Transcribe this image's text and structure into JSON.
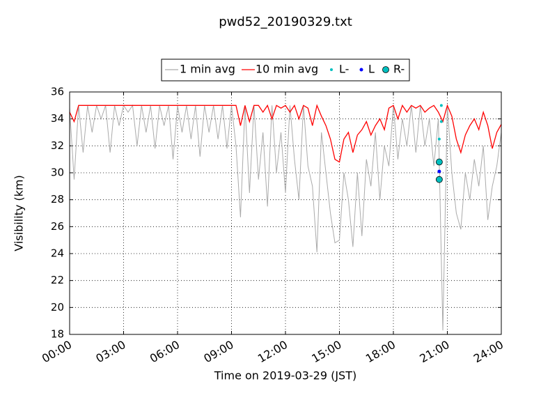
{
  "chart_data": {
    "type": "line",
    "title": "pwd52_20190329.txt",
    "x_label": "Time on 2019-03-29 (JST)",
    "y_label": "Visibility (km)",
    "x": [
      "00:00",
      "00:15",
      "00:30",
      "00:45",
      "01:00",
      "01:15",
      "01:30",
      "01:45",
      "02:00",
      "02:15",
      "02:30",
      "02:45",
      "03:00",
      "03:15",
      "03:30",
      "03:45",
      "04:00",
      "04:15",
      "04:30",
      "04:45",
      "05:00",
      "05:15",
      "05:30",
      "05:45",
      "06:00",
      "06:15",
      "06:30",
      "06:45",
      "07:00",
      "07:15",
      "07:30",
      "07:45",
      "08:00",
      "08:15",
      "08:30",
      "08:45",
      "09:00",
      "09:15",
      "09:30",
      "09:45",
      "10:00",
      "10:15",
      "10:30",
      "10:45",
      "11:00",
      "11:15",
      "11:30",
      "11:45",
      "12:00",
      "12:15",
      "12:30",
      "12:45",
      "13:00",
      "13:15",
      "13:30",
      "13:45",
      "14:00",
      "14:15",
      "14:30",
      "14:45",
      "15:00",
      "15:15",
      "15:30",
      "15:45",
      "16:00",
      "16:15",
      "16:30",
      "16:45",
      "17:00",
      "17:15",
      "17:30",
      "17:45",
      "18:00",
      "18:15",
      "18:30",
      "18:45",
      "19:00",
      "19:15",
      "19:30",
      "19:45",
      "20:00",
      "20:15",
      "20:30",
      "20:45",
      "21:00",
      "21:15",
      "21:30",
      "21:45",
      "22:00",
      "22:15",
      "22:30",
      "22:45",
      "23:00",
      "23:15",
      "23:30",
      "23:45",
      "24:00"
    ],
    "series": [
      {
        "name": "1 min avg",
        "color": "#aaaaaa",
        "type": "line",
        "values": [
          34.8,
          29.5,
          35,
          31.5,
          35,
          33,
          35,
          34,
          35,
          31.5,
          35,
          33.5,
          35,
          34.5,
          35,
          32,
          35,
          33,
          35,
          31.8,
          35,
          33.5,
          35,
          31,
          35,
          33,
          35,
          32.5,
          35,
          31.2,
          35,
          33,
          35,
          32.5,
          35,
          31.8,
          35,
          32,
          26.7,
          35,
          28.5,
          35,
          29.5,
          33,
          27.5,
          35,
          30,
          33,
          28.5,
          35,
          31,
          28,
          35,
          30.5,
          29,
          24.1,
          33,
          30,
          27,
          24.8,
          25,
          30,
          28,
          24.5,
          30,
          25.3,
          31,
          29,
          33,
          28,
          32,
          30.5,
          35,
          31,
          34,
          32,
          35,
          31.5,
          35,
          32,
          34,
          30.5,
          34,
          18.3,
          35,
          30,
          27,
          25.8,
          30,
          28,
          31,
          29,
          32,
          26.5,
          29,
          30.5,
          33
        ]
      },
      {
        "name": "10 min avg",
        "color": "#ff0000",
        "type": "line",
        "values": [
          34.5,
          33.8,
          35,
          35,
          35,
          35,
          35,
          35,
          35,
          35,
          35,
          35,
          35,
          35,
          35,
          35,
          35,
          35,
          35,
          35,
          35,
          35,
          35,
          35,
          35,
          35,
          35,
          35,
          35,
          35,
          35,
          35,
          35,
          35,
          35,
          35,
          35,
          35,
          33.5,
          35,
          33.8,
          35,
          35,
          34.5,
          35,
          34,
          35,
          34.8,
          35,
          34.5,
          35,
          34,
          35,
          34.8,
          33.5,
          35,
          34.2,
          33.5,
          32.5,
          31,
          30.8,
          32.5,
          33,
          31.5,
          32.8,
          33.2,
          33.8,
          32.8,
          33.5,
          34,
          33.2,
          34.8,
          35,
          34,
          35,
          34.5,
          35,
          34.8,
          35,
          34.5,
          34.8,
          35,
          34.5,
          33.8,
          35,
          34.2,
          32.5,
          31.5,
          32.8,
          33.5,
          34,
          33.2,
          34.5,
          33.5,
          31.8,
          33,
          33.6
        ]
      },
      {
        "name": "L-",
        "color": "#00bfbf",
        "type": "scatter",
        "x": [
          "20:33",
          "20:33",
          "20:40",
          "20:40"
        ],
        "values": [
          32.5,
          29.5,
          35,
          33.8
        ]
      },
      {
        "name": "L",
        "color": "#0000ff",
        "type": "scatter",
        "x": [
          "20:33"
        ],
        "values": [
          30.1
        ]
      },
      {
        "name": "R-",
        "color": "#00bfbf",
        "type": "scatter",
        "x": [
          "20:33",
          "20:33"
        ],
        "values": [
          30.8,
          29.5
        ]
      }
    ],
    "xlim": [
      "00:00",
      "24:00"
    ],
    "xticks": [
      "00:00",
      "03:00",
      "06:00",
      "09:00",
      "12:00",
      "15:00",
      "18:00",
      "21:00",
      "24:00"
    ],
    "ylim": [
      18,
      36
    ],
    "yticks": [
      18,
      20,
      22,
      24,
      26,
      28,
      30,
      32,
      34,
      36
    ],
    "grid": true,
    "legend": "top"
  }
}
